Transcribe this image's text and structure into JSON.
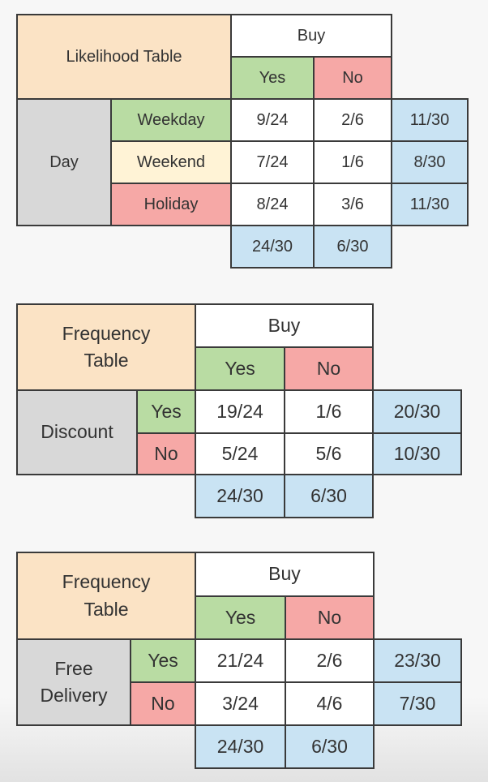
{
  "tables": [
    {
      "title": "Likelihood Table",
      "column_group": "Buy",
      "columns": [
        "Yes",
        "No"
      ],
      "row_group": "Day",
      "rows": [
        {
          "label": "Weekday",
          "yes": "9/24",
          "no": "2/6",
          "total": "11/30"
        },
        {
          "label": "Weekend",
          "yes": "7/24",
          "no": "1/6",
          "total": "8/30"
        },
        {
          "label": "Holiday",
          "yes": "8/24",
          "no": "3/6",
          "total": "11/30"
        }
      ],
      "column_totals": [
        "24/30",
        "6/30"
      ]
    },
    {
      "title_line1": "Frequency",
      "title_line2": "Table",
      "column_group": "Buy",
      "columns": [
        "Yes",
        "No"
      ],
      "row_group": "Discount",
      "rows": [
        {
          "label": "Yes",
          "yes": "19/24",
          "no": "1/6",
          "total": "20/30"
        },
        {
          "label": "No",
          "yes": "5/24",
          "no": "5/6",
          "total": "10/30"
        }
      ],
      "column_totals": [
        "24/30",
        "6/30"
      ]
    },
    {
      "title_line1": "Frequency",
      "title_line2": "Table",
      "column_group": "Buy",
      "columns": [
        "Yes",
        "No"
      ],
      "row_group_line1": "Free",
      "row_group_line2": "Delivery",
      "rows": [
        {
          "label": "Yes",
          "yes": "21/24",
          "no": "2/6",
          "total": "23/30"
        },
        {
          "label": "No",
          "yes": "3/24",
          "no": "4/6",
          "total": "7/30"
        }
      ],
      "column_totals": [
        "24/30",
        "6/30"
      ]
    }
  ]
}
